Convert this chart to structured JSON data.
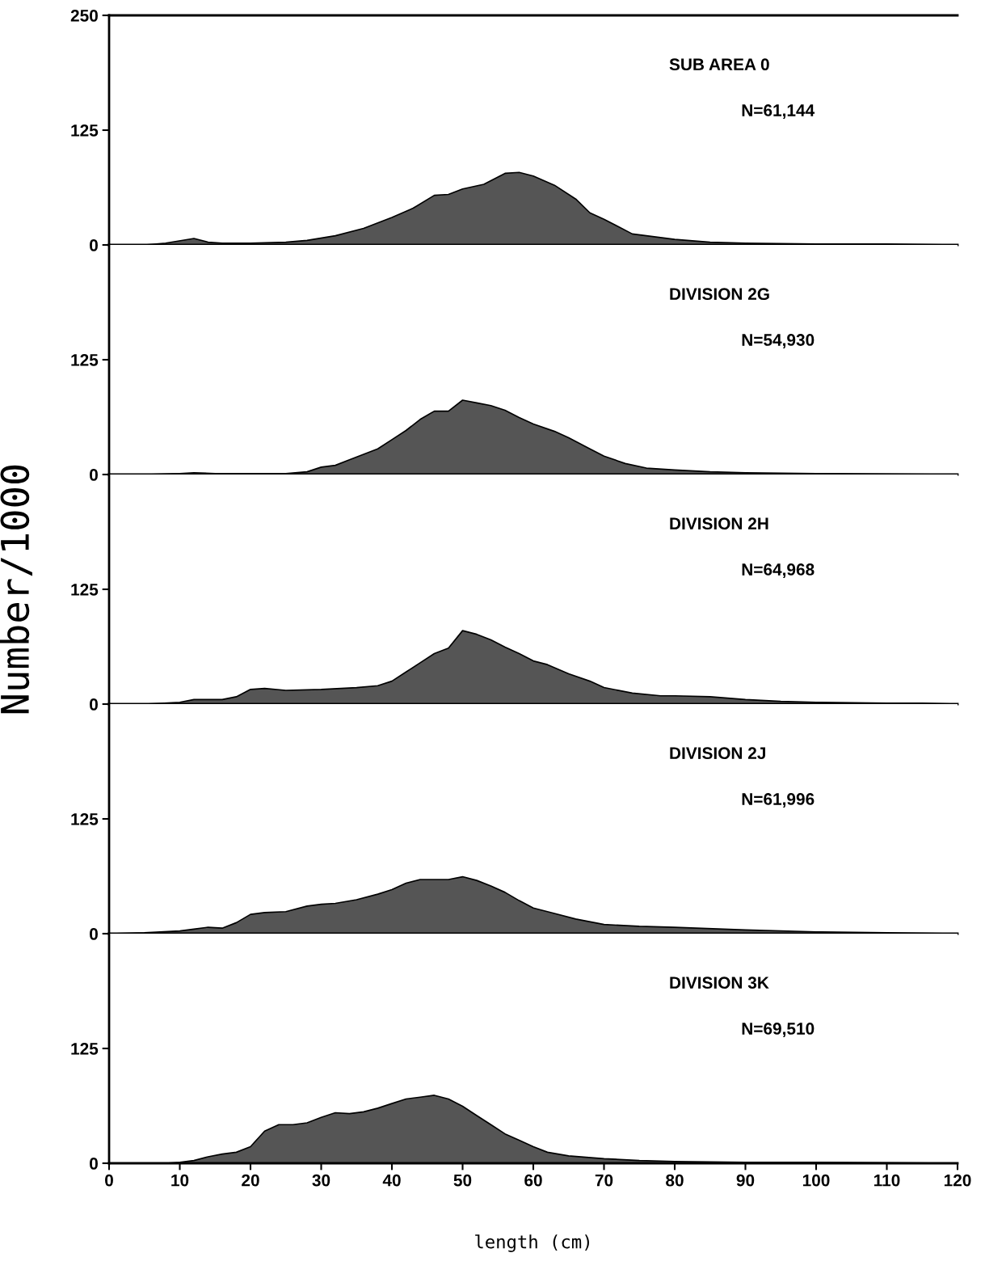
{
  "chart_data": [
    {
      "type": "area",
      "annotations": [
        "SUB AREA 0",
        "N=61,144"
      ],
      "x": [
        0,
        5,
        8,
        12,
        14,
        16,
        20,
        25,
        28,
        32,
        36,
        40,
        43,
        46,
        48,
        50,
        53,
        56,
        58,
        60,
        63,
        66,
        68,
        70,
        72,
        74,
        76,
        80,
        85,
        90,
        100,
        110,
        120
      ],
      "values": [
        0,
        0,
        2,
        7,
        3,
        2,
        2,
        3,
        5,
        10,
        18,
        30,
        40,
        54,
        55,
        61,
        66,
        78,
        79,
        75,
        65,
        50,
        35,
        28,
        20,
        12,
        10,
        6,
        3,
        2,
        1,
        1,
        0
      ],
      "color": "#555555",
      "xlim": [
        0,
        120
      ],
      "ylim": [
        0,
        250
      ],
      "yticks": [
        0,
        125,
        250
      ],
      "tick_labels": "y"
    },
    {
      "type": "area",
      "annotations": [
        "DIVISION 2G",
        "N=54,930"
      ],
      "x": [
        0,
        5,
        10,
        12,
        15,
        20,
        25,
        28,
        30,
        32,
        34,
        36,
        38,
        40,
        42,
        44,
        46,
        48,
        50,
        52,
        54,
        56,
        58,
        60,
        63,
        65,
        68,
        70,
        73,
        76,
        80,
        85,
        90,
        100,
        120
      ],
      "values": [
        0,
        0,
        1,
        2,
        1,
        1,
        1,
        3,
        8,
        10,
        16,
        22,
        28,
        38,
        48,
        60,
        69,
        69,
        81,
        78,
        75,
        70,
        62,
        55,
        47,
        40,
        28,
        20,
        12,
        7,
        5,
        3,
        2,
        1,
        0
      ],
      "color": "#555555",
      "xlim": [
        0,
        120
      ],
      "ylim": [
        0,
        250
      ],
      "yticks": [
        0,
        125
      ],
      "tick_labels": "y"
    },
    {
      "type": "area",
      "annotations": [
        "DIVISION 2H",
        "N=64,968"
      ],
      "ylabel": "Number/1000",
      "x": [
        0,
        5,
        10,
        12,
        16,
        18,
        20,
        22,
        25,
        30,
        35,
        38,
        40,
        42,
        44,
        46,
        48,
        50,
        52,
        54,
        56,
        58,
        60,
        62,
        65,
        68,
        70,
        74,
        78,
        80,
        85,
        90,
        95,
        100,
        110,
        115,
        120
      ],
      "values": [
        0,
        0,
        2,
        5,
        5,
        8,
        16,
        17,
        15,
        16,
        18,
        20,
        25,
        35,
        45,
        55,
        61,
        80,
        76,
        70,
        62,
        55,
        47,
        43,
        33,
        25,
        18,
        12,
        9,
        9,
        8,
        5,
        3,
        2,
        1,
        1,
        0
      ],
      "color": "#555555",
      "xlim": [
        0,
        120
      ],
      "ylim": [
        0,
        250
      ],
      "yticks": [
        0,
        125
      ],
      "tick_labels": "y"
    },
    {
      "type": "area",
      "annotations": [
        "DIVISION 2J",
        "N=61,996"
      ],
      "x": [
        0,
        5,
        10,
        12,
        14,
        16,
        18,
        20,
        22,
        25,
        28,
        30,
        32,
        35,
        38,
        40,
        42,
        44,
        48,
        50,
        52,
        54,
        56,
        58,
        60,
        63,
        66,
        70,
        75,
        80,
        90,
        100,
        110,
        120
      ],
      "values": [
        0,
        1,
        3,
        5,
        7,
        6,
        12,
        21,
        23,
        24,
        30,
        32,
        33,
        37,
        43,
        48,
        55,
        59,
        59,
        62,
        58,
        52,
        45,
        36,
        28,
        22,
        16,
        10,
        8,
        7,
        4,
        2,
        1,
        0
      ],
      "color": "#555555",
      "xlim": [
        0,
        120
      ],
      "ylim": [
        0,
        250
      ],
      "yticks": [
        0,
        125
      ],
      "tick_labels": "y"
    },
    {
      "type": "area",
      "annotations": [
        "DIVISION 3K",
        "N=69,510"
      ],
      "xlabel": "length (cm)",
      "x": [
        0,
        8,
        10,
        12,
        14,
        16,
        18,
        20,
        22,
        24,
        26,
        28,
        30,
        32,
        34,
        36,
        38,
        40,
        42,
        44,
        46,
        48,
        50,
        52,
        54,
        56,
        58,
        60,
        62,
        65,
        70,
        75,
        80,
        90,
        100,
        120
      ],
      "values": [
        0,
        0,
        1,
        3,
        7,
        10,
        12,
        18,
        35,
        42,
        42,
        44,
        50,
        55,
        54,
        56,
        60,
        65,
        70,
        72,
        74,
        70,
        62,
        52,
        42,
        32,
        25,
        18,
        12,
        8,
        5,
        3,
        2,
        1,
        1,
        0
      ],
      "color": "#555555",
      "xlim": [
        0,
        120
      ],
      "ylim": [
        0,
        250
      ],
      "yticks": [
        0,
        125
      ],
      "xticks": [
        0,
        10,
        20,
        30,
        40,
        50,
        60,
        70,
        80,
        90,
        100,
        110,
        120
      ]
    }
  ]
}
